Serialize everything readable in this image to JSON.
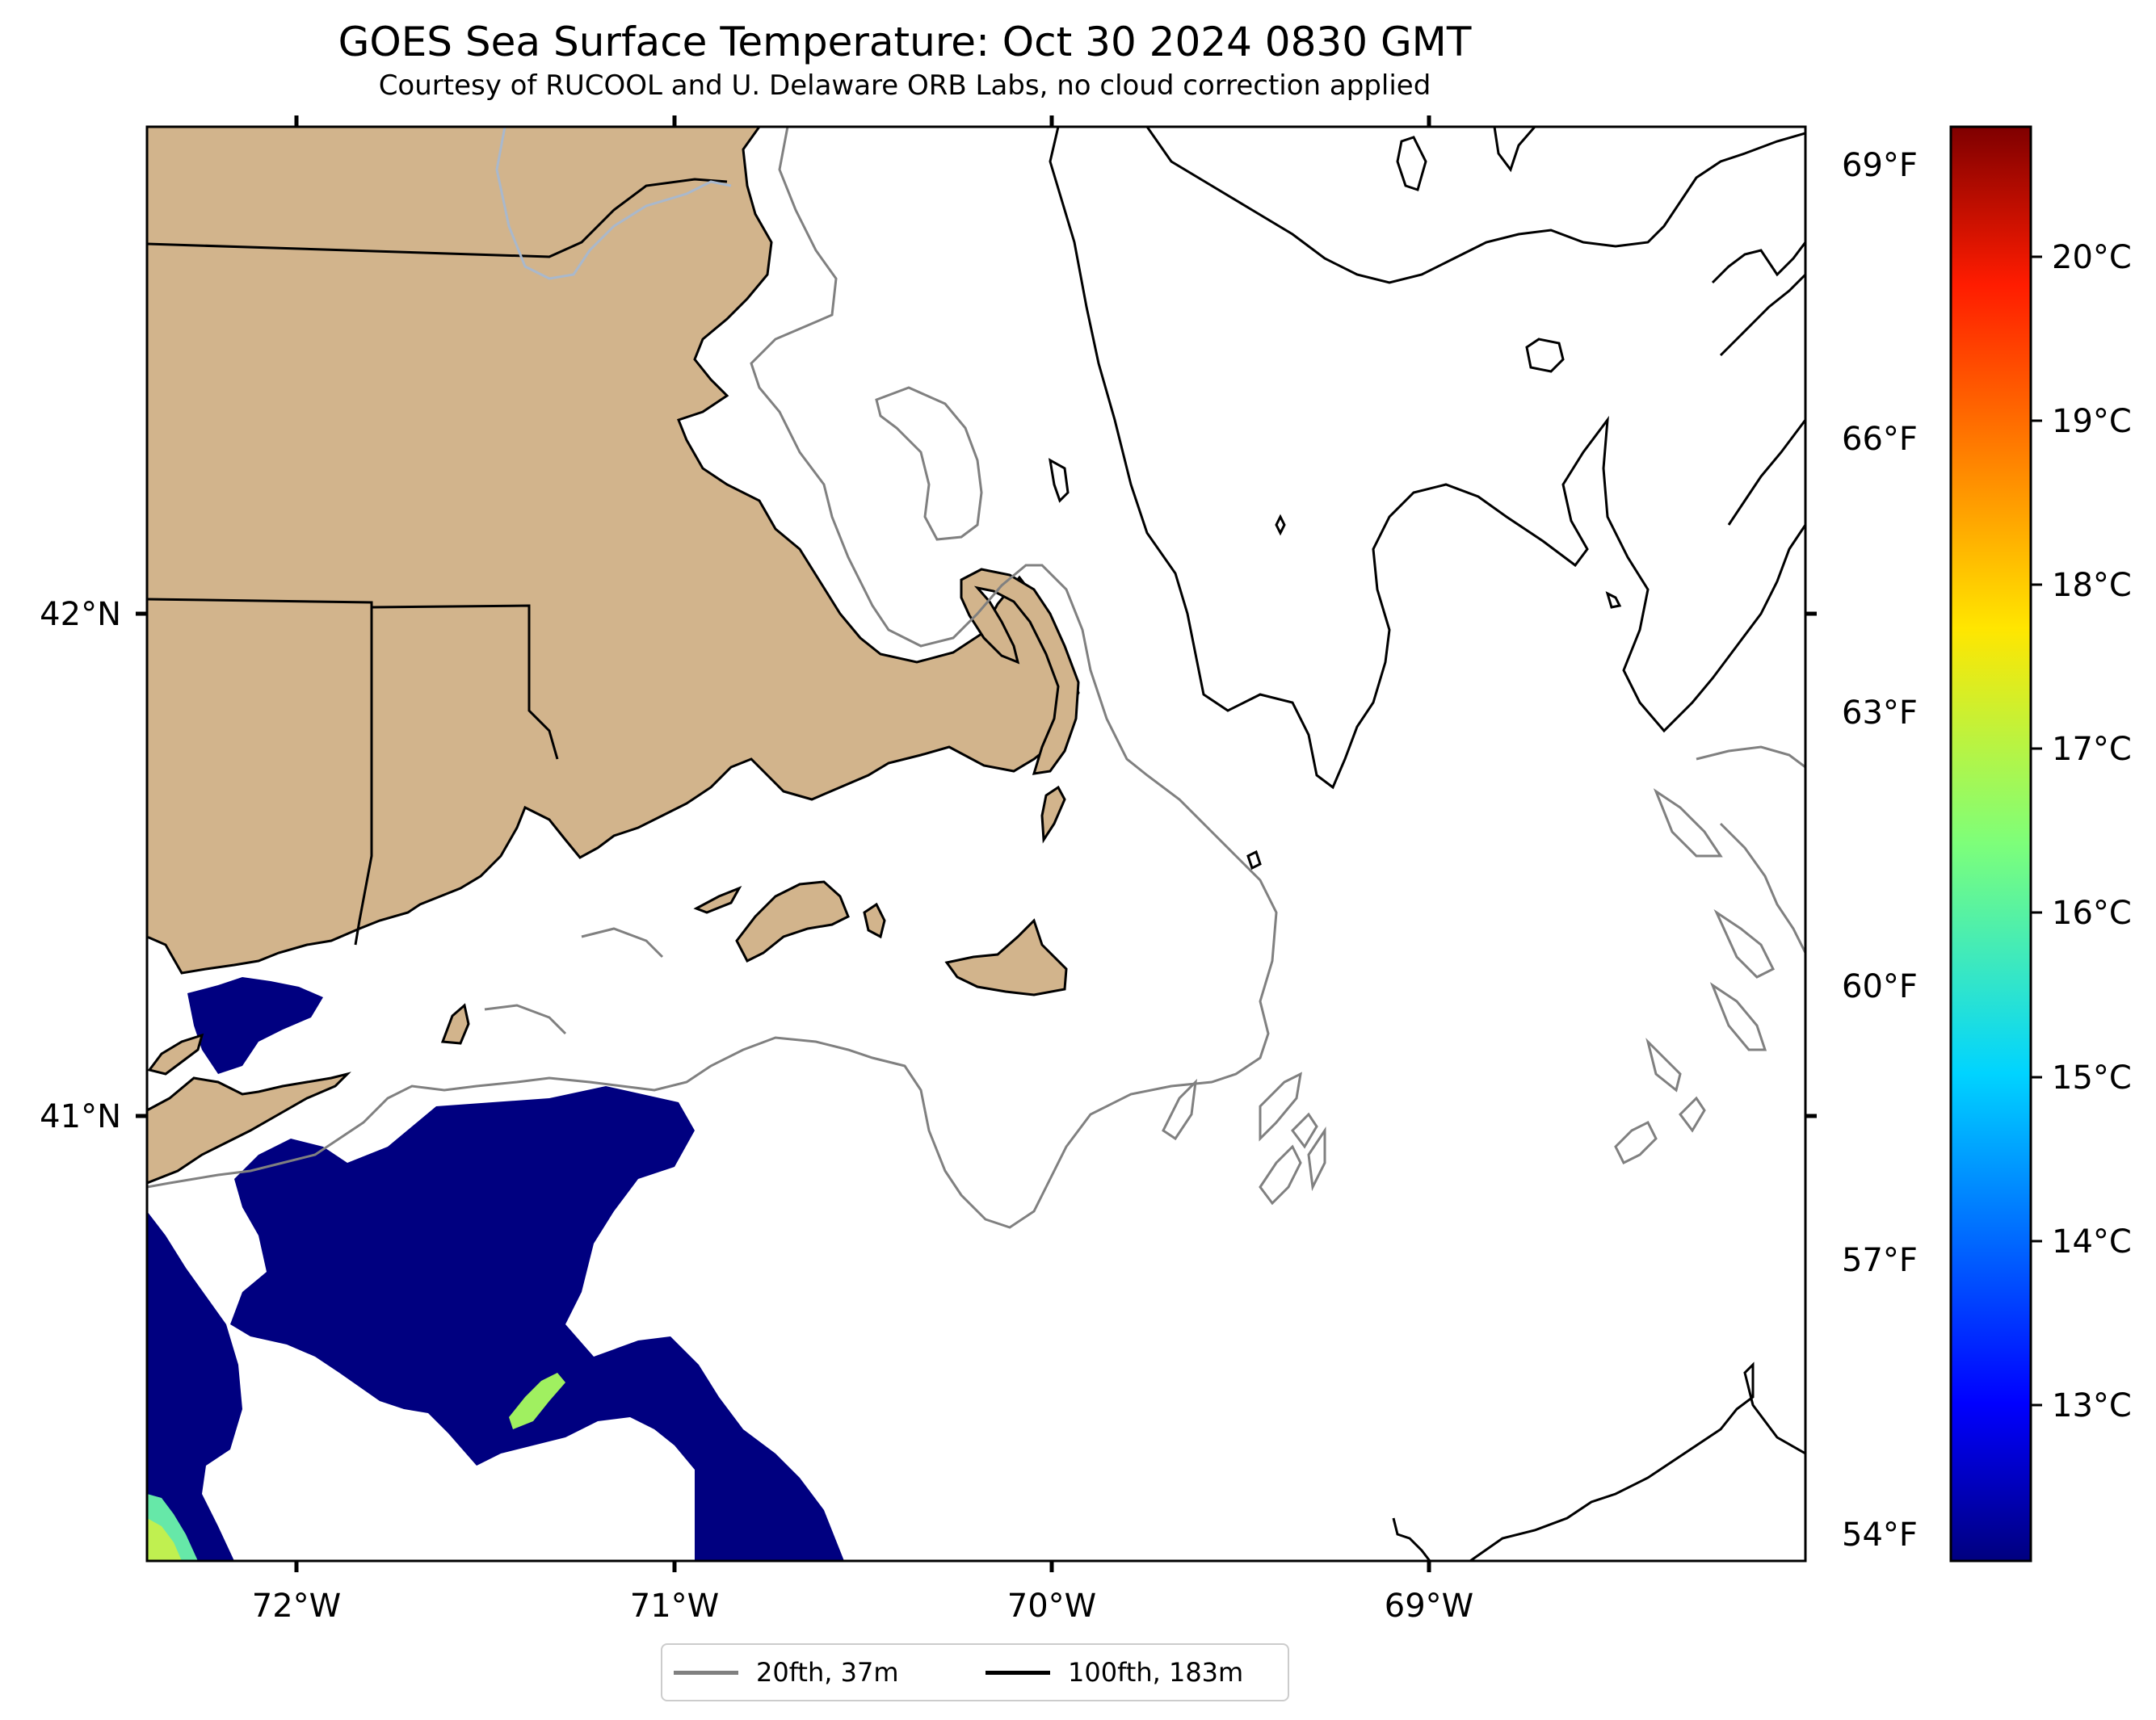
{
  "header": {
    "title": "GOES Sea Surface Temperature: Oct 30 2024 0830 GMT",
    "subtitle": "Courtesy of RUCOOL and U. Delaware ORB Labs, no cloud correction applied"
  },
  "map": {
    "longitude_ticks": [
      "72°W",
      "71°W",
      "70°W",
      "69°W"
    ],
    "latitude_ticks": [
      "42°N",
      "41°N"
    ],
    "land_color": "#d2b48c",
    "sst_cold_color": "#000080",
    "sst_warm_patch_color": "#a0f060"
  },
  "colorbar": {
    "celsius_ticks": [
      "20°C",
      "19°C",
      "18°C",
      "17°C",
      "16°C",
      "15°C",
      "14°C",
      "13°C"
    ],
    "fahrenheit_ticks": [
      "69°F",
      "66°F",
      "63°F",
      "60°F",
      "57°F",
      "54°F"
    ],
    "colormap": "jet"
  },
  "legend": {
    "items": [
      {
        "label": "20fth, 37m",
        "color": "#808080"
      },
      {
        "label": "100fth, 183m",
        "color": "#000000"
      }
    ]
  }
}
